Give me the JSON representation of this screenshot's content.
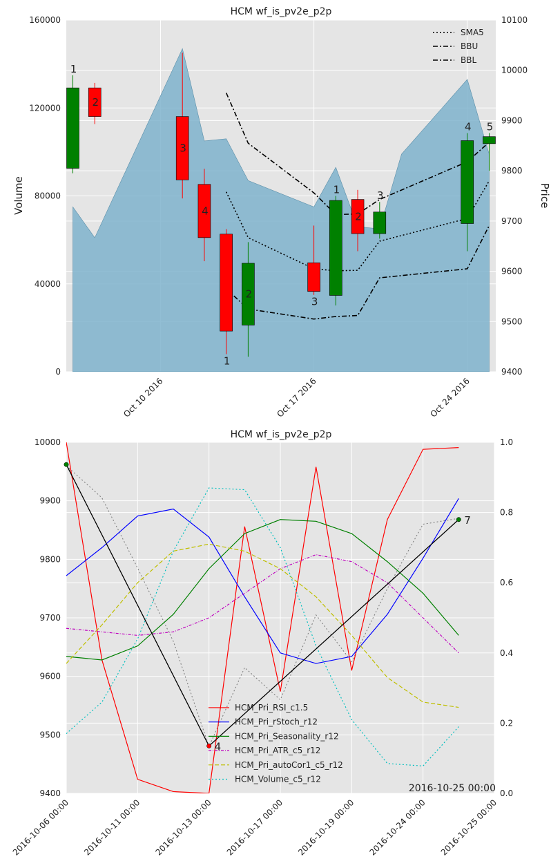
{
  "chart_data": [
    {
      "type": "candlestick",
      "title": "HCM wf_is_pv2e_p2p",
      "ylabel_left": "Volume",
      "ylabel_right": "Price",
      "ylim_left": [
        0,
        160000
      ],
      "ylim_right": [
        9400,
        10100
      ],
      "yticks_left": [
        "0",
        "40000",
        "80000",
        "120000",
        "160000"
      ],
      "yticks_right": [
        "9400",
        "9500",
        "9600",
        "9700",
        "9800",
        "9900",
        "10000",
        "10100"
      ],
      "xticks": [
        {
          "day": 4,
          "label": "Oct 10 2016"
        },
        {
          "day": 11,
          "label": "Oct 17 2016"
        },
        {
          "day": 18,
          "label": "Oct 24 2016"
        }
      ],
      "xlim_days": [
        -0.3,
        19.3
      ],
      "grid": true,
      "legend_position": "top-right",
      "legend": [
        {
          "name": "SMA5",
          "dash": "2,3"
        },
        {
          "name": "BBU",
          "dash": "7,3,2,3"
        },
        {
          "name": "BBL",
          "dash": "7,3,2,3"
        }
      ],
      "volume": {
        "days": [
          0,
          1,
          5,
          6,
          7,
          8,
          11,
          12,
          13,
          14,
          15,
          18,
          19
        ],
        "values": [
          75000,
          61000,
          147000,
          105000,
          106000,
          87000,
          75000,
          93000,
          66000,
          65000,
          99000,
          133000,
          99000
        ]
      },
      "candles": [
        {
          "day": 0,
          "open": 9805,
          "close": 9965,
          "high": 9990,
          "low": 9795,
          "label": "1",
          "label_pos": "above"
        },
        {
          "day": 1,
          "open": 9965,
          "close": 9908,
          "high": 9975,
          "low": 9893,
          "label": "2",
          "label_pos": "inside"
        },
        {
          "day": 5,
          "open": 9908,
          "close": 9782,
          "high": 10035,
          "low": 9745,
          "label": "3",
          "label_pos": "inside"
        },
        {
          "day": 6,
          "open": 9773,
          "close": 9667,
          "high": 9804,
          "low": 9620,
          "label": "4",
          "label_pos": "inside"
        },
        {
          "day": 7,
          "open": 9674,
          "close": 9481,
          "high": 9684,
          "low": 9435,
          "label": "1",
          "label_pos": "below"
        },
        {
          "day": 8,
          "open": 9493,
          "close": 9616,
          "high": 9658,
          "low": 9430,
          "label": "2",
          "label_pos": "inside"
        },
        {
          "day": 11,
          "open": 9617,
          "close": 9560,
          "high": 9691,
          "low": 9553,
          "label": "3",
          "label_pos": "below"
        },
        {
          "day": 12,
          "open": 9552,
          "close": 9741,
          "high": 9750,
          "low": 9532,
          "label": "1",
          "label_pos": "above"
        },
        {
          "day": 13,
          "open": 9743,
          "close": 9675,
          "high": 9762,
          "low": 9640,
          "label": "2",
          "label_pos": "inside"
        },
        {
          "day": 14,
          "open": 9675,
          "close": 9718,
          "high": 9738,
          "low": 9665,
          "label": "3",
          "label_pos": "above"
        },
        {
          "day": 18,
          "open": 9695,
          "close": 9860,
          "high": 9875,
          "low": 9640,
          "label": "4",
          "label_pos": "above"
        },
        {
          "day": 19,
          "open": 9854,
          "close": 9868,
          "high": 9875,
          "low": 9800,
          "label": "5",
          "label_pos": "above"
        }
      ],
      "sma5": {
        "days": [
          7,
          8,
          11,
          12,
          13,
          14,
          18,
          19
        ],
        "values": [
          9758,
          9667,
          9605,
          9601,
          9602,
          9660,
          9705,
          9780
        ]
      },
      "bbu": {
        "days": [
          7,
          8,
          11,
          12,
          13,
          14,
          18,
          19
        ],
        "values": [
          9955,
          9855,
          9756,
          9713,
          9714,
          9743,
          9818,
          9857
        ]
      },
      "bbl": {
        "days": [
          7,
          8,
          11,
          12,
          13,
          14,
          18,
          19
        ],
        "values": [
          9565,
          9525,
          9505,
          9510,
          9512,
          9587,
          9605,
          9691
        ]
      }
    },
    {
      "type": "line",
      "title": "HCM wf_is_pv2e_p2p",
      "categories": [
        "2016-10-06 00:00",
        "2016-10-11 00:00",
        "2016-10-13 00:00",
        "2016-10-17 00:00",
        "2016-10-19 00:00",
        "2016-10-24 00:00",
        "2016-10-25 00:00"
      ],
      "x_positions": [
        0,
        2,
        4,
        6,
        8,
        10,
        12
      ],
      "xlim": [
        0,
        12
      ],
      "ylim_left": [
        9400,
        10000
      ],
      "ylim_right": [
        0.0,
        1.0
      ],
      "yticks_left": [
        "9400",
        "9500",
        "9600",
        "9700",
        "9800",
        "9900",
        "10000"
      ],
      "yticks_right": [
        "0.0",
        "0.2",
        "0.4",
        "0.6",
        "0.8",
        "1.0"
      ],
      "grid": true,
      "legend_position": "lower-center",
      "corner_label": "2016-10-25 00:00",
      "series": [
        {
          "name": "HCM_Pri_RSI_c1.5",
          "color": "#ff0000",
          "dash": "",
          "x": [
            0,
            1,
            2,
            3,
            4,
            5,
            6,
            7,
            8,
            9,
            10,
            11
          ],
          "values": [
            1.0,
            0.38,
            0.04,
            0.005,
            0.0,
            0.76,
            0.29,
            0.93,
            0.35,
            0.78,
            0.98,
            0.985
          ]
        },
        {
          "name": "HCM_Pri_rStoch_r12",
          "color": "#0000ff",
          "dash": "",
          "x": [
            0,
            1,
            2,
            3,
            4,
            5,
            6,
            7,
            8,
            9,
            10,
            11
          ],
          "values": [
            0.62,
            0.7,
            0.79,
            0.81,
            0.73,
            0.56,
            0.4,
            0.37,
            0.39,
            0.51,
            0.67,
            0.84
          ]
        },
        {
          "name": "HCM_Pri_Seasonality_r12",
          "color": "#008000",
          "dash": "",
          "x": [
            0,
            1,
            2,
            3,
            4,
            5,
            6,
            7,
            8,
            9,
            10,
            11
          ],
          "values": [
            0.39,
            0.38,
            0.42,
            0.51,
            0.64,
            0.74,
            0.78,
            0.775,
            0.74,
            0.66,
            0.57,
            0.45
          ]
        },
        {
          "name": "HCM_Pri_ATR_c5_r12",
          "color": "#bf00bf",
          "dash": "4,2,1,2",
          "x": [
            0,
            1,
            2,
            3,
            4,
            5,
            6,
            7,
            8,
            9,
            10,
            11
          ],
          "values": [
            0.47,
            0.46,
            0.45,
            0.46,
            0.5,
            0.57,
            0.64,
            0.68,
            0.66,
            0.6,
            0.5,
            0.4
          ]
        },
        {
          "name": "HCM_Pri_autoCor1_c5_r12",
          "color": "#bfbf00",
          "dash": "6,3",
          "x": [
            0,
            1,
            2,
            3,
            4,
            5,
            6,
            7,
            8,
            9,
            10,
            11
          ],
          "values": [
            0.37,
            0.48,
            0.6,
            0.69,
            0.71,
            0.69,
            0.64,
            0.56,
            0.45,
            0.33,
            0.26,
            0.245
          ]
        },
        {
          "name": "HCM_Volume_c5_r12",
          "color": "#00bfbf",
          "dash": "2,3",
          "x": [
            0,
            1,
            2,
            3,
            4,
            5,
            6,
            7,
            8,
            9,
            10,
            11
          ],
          "values": [
            0.17,
            0.26,
            0.44,
            0.69,
            0.87,
            0.865,
            0.7,
            0.42,
            0.21,
            0.085,
            0.078,
            0.19
          ]
        }
      ],
      "price_line": {
        "color": "#808080",
        "x": [
          0,
          1,
          2,
          3,
          4,
          5,
          6,
          7,
          8,
          9,
          10,
          11
        ],
        "values": [
          9960,
          9905,
          9785,
          9660,
          9480,
          9615,
          9560,
          9705,
          9625,
          9750,
          9860,
          9870
        ]
      },
      "zigzag": {
        "x": [
          0,
          4,
          11
        ],
        "values": [
          9962,
          9481,
          9868
        ],
        "point_colors": [
          "#008000",
          "#ff0000",
          "#008000"
        ],
        "labels": [
          "",
          "4",
          "7"
        ]
      }
    }
  ]
}
